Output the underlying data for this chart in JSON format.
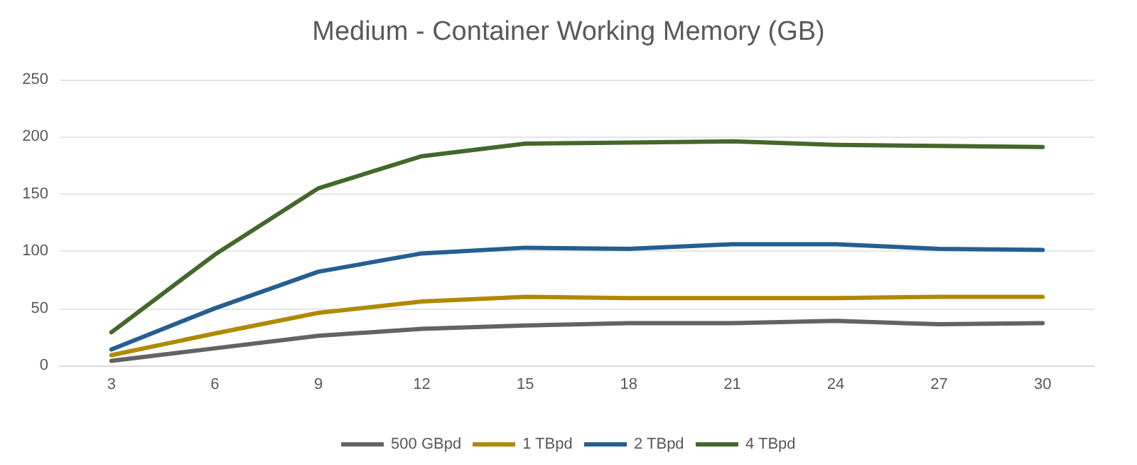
{
  "chart_data": {
    "type": "line",
    "title": "Medium - Container Working Memory (GB)",
    "categories": [
      "3",
      "6",
      "9",
      "12",
      "15",
      "18",
      "21",
      "24",
      "27",
      "30"
    ],
    "series": [
      {
        "name": "500 GBpd",
        "color": "#636363",
        "values": [
          4,
          15,
          26,
          32,
          35,
          37,
          37,
          39,
          36,
          37
        ]
      },
      {
        "name": "1 TBpd",
        "color": "#b08900",
        "values": [
          9,
          28,
          46,
          56,
          60,
          59,
          59,
          59,
          60,
          60
        ]
      },
      {
        "name": "2 TBpd",
        "color": "#255e91",
        "values": [
          14,
          50,
          82,
          98,
          103,
          102,
          106,
          106,
          102,
          101
        ]
      },
      {
        "name": "4 TBpd",
        "color": "#43682b",
        "values": [
          29,
          97,
          155,
          183,
          194,
          195,
          196,
          193,
          192,
          191
        ]
      }
    ],
    "ylim": [
      0,
      250
    ],
    "yticks": [
      0,
      50,
      100,
      150,
      200,
      250
    ],
    "grid": "y",
    "legend": "bottom",
    "marker": "none",
    "line_style": "solid"
  }
}
